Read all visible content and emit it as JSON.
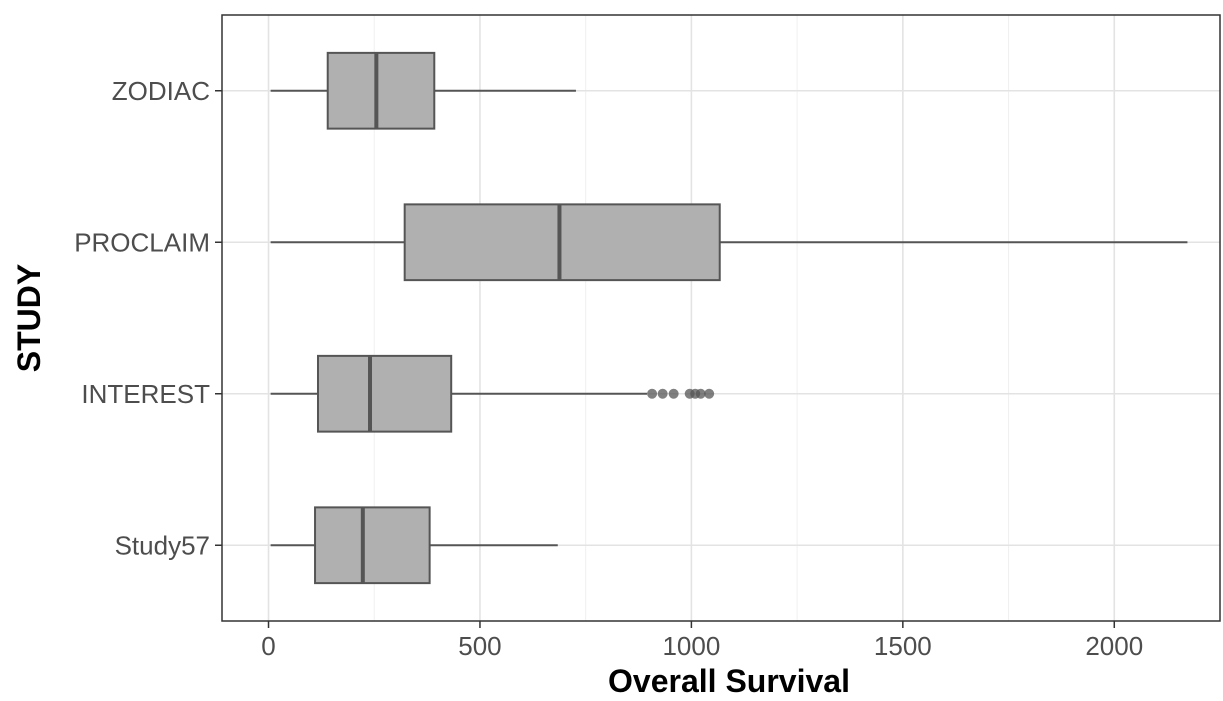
{
  "chart_data": {
    "type": "boxplot",
    "orientation": "horizontal",
    "title": "",
    "xlabel": "Overall Survival",
    "ylabel": "STUDY",
    "xlim": [
      -110,
      2250
    ],
    "x_ticks": [
      0,
      500,
      1000,
      1500,
      2000
    ],
    "x_tick_labels": [
      "0",
      "500",
      "1000",
      "1500",
      "2000"
    ],
    "grid": true,
    "legend": "none",
    "box_color": "#b0b0b0",
    "line_color": "#555555",
    "outlier_color": "#555555",
    "categories": [
      "ZODIAC",
      "PROCLAIM",
      "INTEREST",
      "Study57"
    ],
    "boxes": [
      {
        "name": "ZODIAC",
        "min": 5,
        "q1": 140,
        "median": 255,
        "q3": 392,
        "max": 727,
        "outliers": []
      },
      {
        "name": "PROCLAIM",
        "min": 5,
        "q1": 322,
        "median": 688,
        "q3": 1067,
        "max": 2173,
        "outliers": []
      },
      {
        "name": "INTEREST",
        "min": 5,
        "q1": 117,
        "median": 240,
        "q3": 432,
        "max": 895,
        "outliers": [
          907,
          932,
          958,
          996,
          1009,
          1022,
          1042
        ]
      },
      {
        "name": "Study57",
        "min": 5,
        "q1": 110,
        "median": 223,
        "q3": 381,
        "max": 684,
        "outliers": []
      }
    ]
  }
}
